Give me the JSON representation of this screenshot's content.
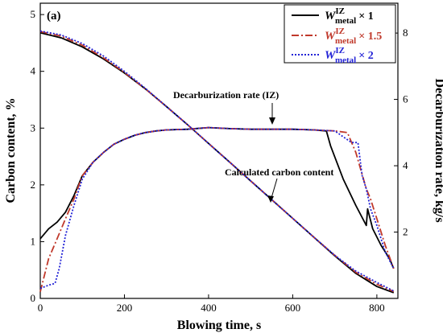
{
  "chart_data": {
    "type": "line",
    "panel_label": "(a)",
    "xlabel": "Blowing time, s",
    "ylabel_left": "Carbon content, %",
    "ylabel_right": "Decarburization rate, kg/s",
    "xlim": [
      0,
      850
    ],
    "ylim_left": [
      0,
      5.2
    ],
    "ylim_right": [
      0,
      8.9
    ],
    "x_ticks": [
      0,
      200,
      400,
      600,
      800
    ],
    "y_left_ticks": [
      0,
      1,
      2,
      3,
      4,
      5
    ],
    "y_right_ticks": [
      2,
      4,
      6,
      8
    ],
    "grid": false,
    "legend_position": "top-right",
    "legend": [
      {
        "base": "W",
        "sup": "IZ",
        "sub": "metal",
        "mult": "× 1",
        "color": "#000000",
        "dash": "solid"
      },
      {
        "base": "W",
        "sup": "IZ",
        "sub": "metal",
        "mult": "× 1.5",
        "color": "#c0392b",
        "dash": "dashdot"
      },
      {
        "base": "W",
        "sup": "IZ",
        "sub": "metal",
        "mult": "× 2",
        "color": "#2323d6",
        "dash": "dot"
      }
    ],
    "annotations": [
      {
        "text": "Decarburization rate (IZ)",
        "arrow_to": [
          400,
          5.1
        ],
        "axis": "right"
      },
      {
        "text": "Calculated carbon content",
        "arrow_to": [
          480,
          2.1
        ],
        "axis": "left"
      }
    ],
    "series": [
      {
        "curve": "carbon_content",
        "axis": "left",
        "color": "#000000",
        "dash": "solid",
        "x": [
          0,
          50,
          100,
          150,
          200,
          250,
          300,
          350,
          400,
          450,
          500,
          550,
          600,
          650,
          700,
          750,
          800,
          840
        ],
        "y": [
          4.68,
          4.59,
          4.43,
          4.22,
          3.97,
          3.69,
          3.38,
          3.06,
          2.73,
          2.4,
          2.07,
          1.74,
          1.41,
          1.08,
          0.75,
          0.44,
          0.21,
          0.1
        ]
      },
      {
        "curve": "carbon_content",
        "axis": "left",
        "color": "#c0392b",
        "dash": "dashdot",
        "x": [
          0,
          50,
          100,
          150,
          200,
          250,
          300,
          350,
          400,
          450,
          500,
          550,
          600,
          650,
          700,
          750,
          800,
          840
        ],
        "y": [
          4.7,
          4.62,
          4.46,
          4.24,
          3.98,
          3.69,
          3.38,
          3.06,
          2.73,
          2.4,
          2.07,
          1.74,
          1.41,
          1.08,
          0.76,
          0.46,
          0.25,
          0.12
        ]
      },
      {
        "curve": "carbon_content",
        "axis": "left",
        "color": "#2323d6",
        "dash": "dot",
        "x": [
          0,
          50,
          100,
          150,
          200,
          250,
          300,
          350,
          400,
          450,
          500,
          550,
          600,
          650,
          700,
          750,
          800,
          840
        ],
        "y": [
          4.71,
          4.64,
          4.49,
          4.27,
          4.0,
          3.7,
          3.38,
          3.06,
          2.73,
          2.4,
          2.07,
          1.74,
          1.41,
          1.08,
          0.76,
          0.48,
          0.28,
          0.13
        ]
      },
      {
        "curve": "decarburization_rate",
        "axis": "right",
        "color": "#000000",
        "dash": "solid",
        "x": [
          0,
          20,
          40,
          60,
          80,
          100,
          125,
          150,
          175,
          200,
          225,
          250,
          275,
          300,
          350,
          400,
          450,
          500,
          550,
          600,
          650,
          680,
          690,
          720,
          750,
          775,
          778,
          790,
          810,
          830,
          840
        ],
        "y": [
          1.8,
          2.1,
          2.3,
          2.6,
          3.1,
          3.7,
          4.1,
          4.4,
          4.65,
          4.8,
          4.92,
          5.0,
          5.05,
          5.08,
          5.1,
          5.15,
          5.12,
          5.1,
          5.1,
          5.1,
          5.08,
          5.05,
          4.6,
          3.6,
          2.8,
          2.2,
          2.7,
          2.1,
          1.6,
          1.2,
          0.9
        ]
      },
      {
        "curve": "decarburization_rate",
        "axis": "right",
        "color": "#c0392b",
        "dash": "dashdot",
        "x": [
          0,
          20,
          40,
          60,
          80,
          100,
          125,
          150,
          175,
          200,
          225,
          250,
          275,
          300,
          350,
          400,
          450,
          500,
          550,
          600,
          650,
          700,
          730,
          750,
          775,
          785,
          800,
          820,
          840
        ],
        "y": [
          0.2,
          1.2,
          1.8,
          2.4,
          3.0,
          3.7,
          4.1,
          4.4,
          4.65,
          4.8,
          4.92,
          5.0,
          5.05,
          5.08,
          5.1,
          5.15,
          5.12,
          5.1,
          5.1,
          5.1,
          5.08,
          5.05,
          5.0,
          4.4,
          3.3,
          3.0,
          2.4,
          1.6,
          0.9
        ]
      },
      {
        "curve": "decarburization_rate",
        "axis": "right",
        "color": "#2323d6",
        "dash": "dot",
        "x": [
          0,
          20,
          35,
          45,
          60,
          80,
          100,
          125,
          150,
          175,
          200,
          225,
          250,
          275,
          300,
          350,
          400,
          450,
          500,
          550,
          600,
          650,
          700,
          740,
          755,
          765,
          775,
          785,
          800,
          820,
          840
        ],
        "y": [
          0.3,
          0.4,
          0.45,
          0.9,
          1.9,
          2.8,
          3.6,
          4.1,
          4.4,
          4.65,
          4.8,
          4.92,
          5.0,
          5.05,
          5.08,
          5.1,
          5.15,
          5.12,
          5.1,
          5.1,
          5.1,
          5.08,
          5.05,
          4.7,
          4.7,
          3.7,
          3.3,
          2.7,
          2.2,
          1.4,
          0.9
        ]
      }
    ]
  }
}
